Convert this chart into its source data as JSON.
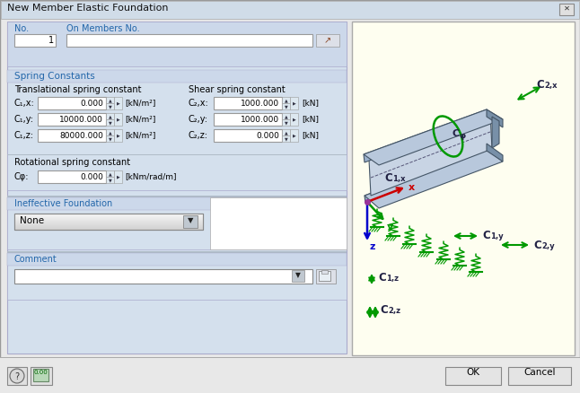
{
  "title": "New Member Elastic Foundation",
  "bg_color": "#e8e8e8",
  "dialog_bg": "#e8e8e8",
  "panel_bg": "#d4e0ed",
  "image_bg": "#fefef0",
  "section_header_bg": "#c8d8e8",
  "no_label": "No.",
  "no_value": "1",
  "on_members_label": "On Members No.",
  "spring_constants_label": "Spring Constants",
  "translational_label": "Translational spring constant",
  "shear_label": "Shear spring constant",
  "rotational_label": "Rotational spring constant",
  "ineffective_label": "Ineffective Foundation",
  "comment_label": "Comment",
  "c1x_label": "C₁,x:",
  "c1y_label": "C₁,y:",
  "c1z_label": "C₁,z:",
  "c2x_label": "C₂,x:",
  "c2y_label": "C₂,y:",
  "c2z_label": "C₂,z:",
  "cphi_label": "Cφ:",
  "c1x_val": "0.000",
  "c1y_val": "10000.000",
  "c1z_val": "80000.000",
  "c2x_val": "1000.000",
  "c2y_val": "1000.000",
  "c2z_val": "0.000",
  "cphi_val": "0.000",
  "unit_knm2": "[kN/m²]",
  "unit_kn": "[kN]",
  "unit_cphi": "[kNm/rad/m]",
  "ineffective_val": "None",
  "ok_label": "OK",
  "cancel_label": "Cancel",
  "blue_header": "#2266aa",
  "green_color": "#009900",
  "red_color": "#cc0000",
  "beam_face_top": "#b8c8dc",
  "beam_face_front": "#9ab0cc",
  "beam_face_right": "#7890a8",
  "beam_edge": "#445566"
}
